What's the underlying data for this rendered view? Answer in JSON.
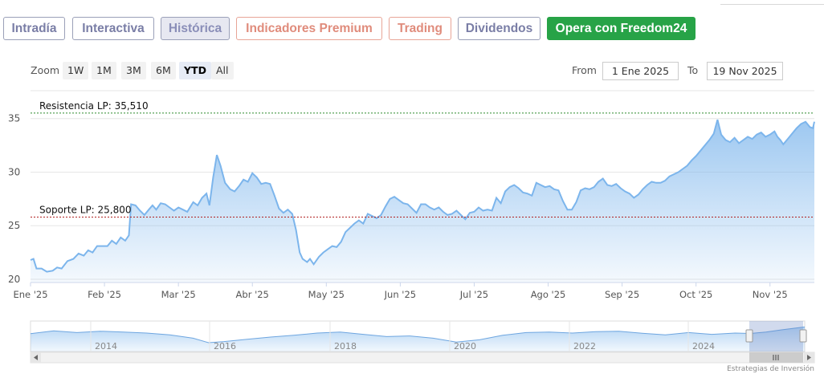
{
  "tabs": [
    {
      "label": "Intradía",
      "style": "normal"
    },
    {
      "label": "Interactiva",
      "style": "normal"
    },
    {
      "label": "Histórica",
      "style": "active"
    },
    {
      "label": "Indicadores Premium",
      "style": "premium"
    },
    {
      "label": "Trading",
      "style": "premium"
    },
    {
      "label": "Dividendos",
      "style": "normal"
    },
    {
      "label": "Opera con Freedom24",
      "style": "cta"
    }
  ],
  "zoom": {
    "label": "Zoom",
    "options": [
      "1W",
      "1M",
      "3M",
      "6M",
      "YTD",
      "All"
    ],
    "selected": "YTD"
  },
  "range": {
    "from_label": "From",
    "from_value": "1 Ene 2025",
    "to_label": "To",
    "to_value": "19 Nov 2025"
  },
  "credit": "Estrategias de Inversión",
  "colors": {
    "line": "#7cb5ec",
    "resistance": "#2e8b2e",
    "support": "#b02020",
    "cta": "#27a347"
  },
  "chart_data": {
    "type": "area",
    "x_tick_labels": [
      "Ene '25",
      "Feb '25",
      "Mar '25",
      "Abr '25",
      "May '25",
      "Jun '25",
      "Jul '25",
      "Ago '25",
      "Sep '25",
      "Oct '25",
      "Nov '25"
    ],
    "y_ticks": [
      20,
      25,
      30,
      35
    ],
    "ylim": [
      19.7,
      37.6
    ],
    "x_range": [
      0,
      10.6
    ],
    "series": [
      {
        "points": [
          [
            0.0,
            21.8
          ],
          [
            0.04,
            21.9
          ],
          [
            0.08,
            21.0
          ],
          [
            0.15,
            21.0
          ],
          [
            0.22,
            20.7
          ],
          [
            0.3,
            20.8
          ],
          [
            0.36,
            21.1
          ],
          [
            0.42,
            21.0
          ],
          [
            0.5,
            21.7
          ],
          [
            0.58,
            21.9
          ],
          [
            0.65,
            22.4
          ],
          [
            0.72,
            22.2
          ],
          [
            0.78,
            22.7
          ],
          [
            0.84,
            22.5
          ],
          [
            0.9,
            23.1
          ],
          [
            0.97,
            23.1
          ],
          [
            1.04,
            23.1
          ],
          [
            1.1,
            23.6
          ],
          [
            1.16,
            23.3
          ],
          [
            1.22,
            23.9
          ],
          [
            1.28,
            23.6
          ],
          [
            1.33,
            24.1
          ],
          [
            1.36,
            27.0
          ],
          [
            1.42,
            26.9
          ],
          [
            1.48,
            26.4
          ],
          [
            1.54,
            26.0
          ],
          [
            1.6,
            26.5
          ],
          [
            1.65,
            26.9
          ],
          [
            1.7,
            26.5
          ],
          [
            1.76,
            27.1
          ],
          [
            1.82,
            27.0
          ],
          [
            1.88,
            26.7
          ],
          [
            1.94,
            26.4
          ],
          [
            2.0,
            26.7
          ],
          [
            2.06,
            26.5
          ],
          [
            2.12,
            26.3
          ],
          [
            2.2,
            27.2
          ],
          [
            2.26,
            26.9
          ],
          [
            2.32,
            27.6
          ],
          [
            2.38,
            28.0
          ],
          [
            2.42,
            26.9
          ],
          [
            2.47,
            29.5
          ],
          [
            2.52,
            31.6
          ],
          [
            2.57,
            30.6
          ],
          [
            2.63,
            29.0
          ],
          [
            2.7,
            28.4
          ],
          [
            2.76,
            28.2
          ],
          [
            2.82,
            28.7
          ],
          [
            2.88,
            29.3
          ],
          [
            2.94,
            29.1
          ],
          [
            3.0,
            29.9
          ],
          [
            3.06,
            29.5
          ],
          [
            3.12,
            28.9
          ],
          [
            3.18,
            29.0
          ],
          [
            3.24,
            28.9
          ],
          [
            3.3,
            27.8
          ],
          [
            3.36,
            26.6
          ],
          [
            3.42,
            26.2
          ],
          [
            3.48,
            26.5
          ],
          [
            3.54,
            26.1
          ],
          [
            3.59,
            24.6
          ],
          [
            3.64,
            22.5
          ],
          [
            3.68,
            21.9
          ],
          [
            3.74,
            21.6
          ],
          [
            3.78,
            21.9
          ],
          [
            3.83,
            21.4
          ],
          [
            3.9,
            22.1
          ],
          [
            3.96,
            22.5
          ],
          [
            4.02,
            22.8
          ],
          [
            4.08,
            23.1
          ],
          [
            4.14,
            23.0
          ],
          [
            4.2,
            23.5
          ],
          [
            4.26,
            24.4
          ],
          [
            4.32,
            24.8
          ],
          [
            4.38,
            25.2
          ],
          [
            4.44,
            25.5
          ],
          [
            4.5,
            25.2
          ],
          [
            4.56,
            26.1
          ],
          [
            4.62,
            25.9
          ],
          [
            4.68,
            25.7
          ],
          [
            4.74,
            26.0
          ],
          [
            4.8,
            26.8
          ],
          [
            4.86,
            27.5
          ],
          [
            4.92,
            27.7
          ],
          [
            4.98,
            27.4
          ],
          [
            5.04,
            27.1
          ],
          [
            5.1,
            27.0
          ],
          [
            5.16,
            26.6
          ],
          [
            5.22,
            26.2
          ],
          [
            5.28,
            27.0
          ],
          [
            5.34,
            27.0
          ],
          [
            5.4,
            26.7
          ],
          [
            5.46,
            26.5
          ],
          [
            5.52,
            26.7
          ],
          [
            5.58,
            26.3
          ],
          [
            5.64,
            26.0
          ],
          [
            5.7,
            26.1
          ],
          [
            5.76,
            26.4
          ],
          [
            5.82,
            26.0
          ],
          [
            5.88,
            25.6
          ],
          [
            5.94,
            26.2
          ],
          [
            6.0,
            26.3
          ],
          [
            6.06,
            26.7
          ],
          [
            6.12,
            26.4
          ],
          [
            6.18,
            26.5
          ],
          [
            6.24,
            26.4
          ],
          [
            6.3,
            27.6
          ],
          [
            6.36,
            27.1
          ],
          [
            6.42,
            28.2
          ],
          [
            6.48,
            28.6
          ],
          [
            6.54,
            28.8
          ],
          [
            6.6,
            28.5
          ],
          [
            6.66,
            28.1
          ],
          [
            6.72,
            28.0
          ],
          [
            6.78,
            27.8
          ],
          [
            6.84,
            29.0
          ],
          [
            6.9,
            28.8
          ],
          [
            6.96,
            28.6
          ],
          [
            7.02,
            28.7
          ],
          [
            7.08,
            28.4
          ],
          [
            7.14,
            28.3
          ],
          [
            7.2,
            27.3
          ],
          [
            7.26,
            26.5
          ],
          [
            7.32,
            26.5
          ],
          [
            7.38,
            27.2
          ],
          [
            7.44,
            28.3
          ],
          [
            7.5,
            28.5
          ],
          [
            7.56,
            28.4
          ],
          [
            7.62,
            28.6
          ],
          [
            7.68,
            29.1
          ],
          [
            7.74,
            29.4
          ],
          [
            7.8,
            28.8
          ],
          [
            7.86,
            28.7
          ],
          [
            7.92,
            28.9
          ],
          [
            7.98,
            28.5
          ],
          [
            8.04,
            28.2
          ],
          [
            8.1,
            28.0
          ],
          [
            8.16,
            27.6
          ],
          [
            8.22,
            27.9
          ],
          [
            8.28,
            28.4
          ],
          [
            8.34,
            28.8
          ],
          [
            8.4,
            29.1
          ],
          [
            8.46,
            29.0
          ],
          [
            8.52,
            29.0
          ],
          [
            8.58,
            29.2
          ],
          [
            8.64,
            29.6
          ],
          [
            8.7,
            29.8
          ],
          [
            8.76,
            30.0
          ],
          [
            8.82,
            30.3
          ],
          [
            8.88,
            30.6
          ],
          [
            8.94,
            31.1
          ],
          [
            9.0,
            31.5
          ],
          [
            9.06,
            32.0
          ],
          [
            9.12,
            32.5
          ],
          [
            9.18,
            33.0
          ],
          [
            9.24,
            33.6
          ],
          [
            9.29,
            34.9
          ],
          [
            9.34,
            33.5
          ],
          [
            9.4,
            33.0
          ],
          [
            9.46,
            32.8
          ],
          [
            9.52,
            33.2
          ],
          [
            9.58,
            32.7
          ],
          [
            9.64,
            33.0
          ],
          [
            9.7,
            33.3
          ],
          [
            9.76,
            33.1
          ],
          [
            9.82,
            33.5
          ],
          [
            9.88,
            33.7
          ],
          [
            9.94,
            33.3
          ],
          [
            10.0,
            33.5
          ],
          [
            10.06,
            33.8
          ],
          [
            10.1,
            33.3
          ],
          [
            10.14,
            33.0
          ],
          [
            10.18,
            32.6
          ],
          [
            10.24,
            33.1
          ],
          [
            10.3,
            33.6
          ],
          [
            10.36,
            34.1
          ],
          [
            10.42,
            34.5
          ],
          [
            10.48,
            34.7
          ],
          [
            10.54,
            34.2
          ],
          [
            10.58,
            34.1
          ],
          [
            10.6,
            34.7
          ]
        ]
      }
    ],
    "annotations": [
      {
        "label": "Resistencia LP: 35,510",
        "value": 35.51,
        "kind": "resistance"
      },
      {
        "label": "Soporte LP: 25,800",
        "value": 25.8,
        "kind": "support"
      }
    ],
    "navigator": {
      "tick_labels": [
        "2014",
        "2016",
        "2018",
        "2020",
        "2022",
        "2024"
      ],
      "selected_range": "Ene 2025 - Nov 2025"
    }
  }
}
